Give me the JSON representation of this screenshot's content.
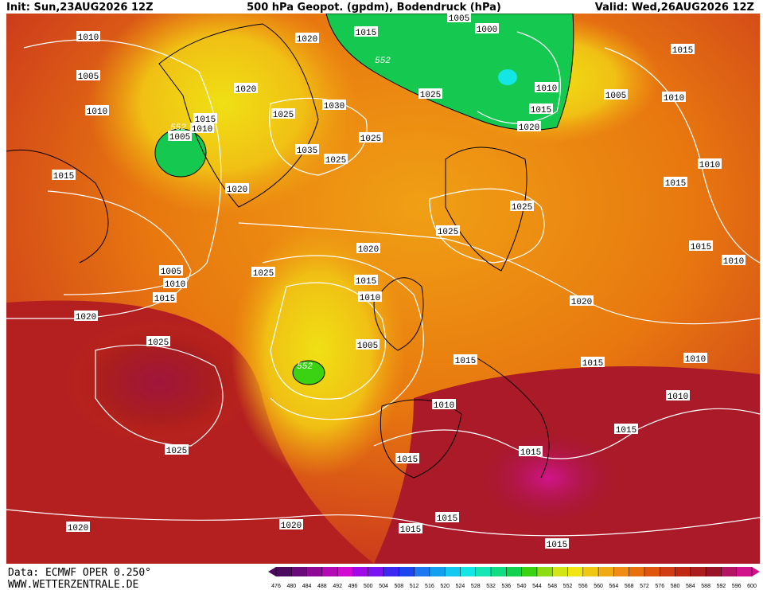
{
  "header": {
    "init": "Init: Sun,23AUG2026 12Z",
    "title": "500 hPa Geopot. (gpdm), Bodendruck (hPa)",
    "valid": "Valid: Wed,26AUG2026 12Z"
  },
  "footer": {
    "source": "Data: ECMWF OPER 0.250°",
    "site": "WWW.WETTERZENTRALE.DE"
  },
  "isobar_labels": [
    "1010",
    "1005",
    "1010",
    "1015",
    "1005",
    "1010",
    "1015",
    "552",
    "1020",
    "1015",
    "1005",
    "1000",
    "552",
    "1020",
    "1025",
    "1030",
    "1035",
    "1025",
    "1025",
    "1025",
    "1010",
    "1015",
    "1020",
    "1005",
    "1015",
    "1010",
    "1010",
    "1015",
    "1025",
    "1025",
    "1020",
    "1020",
    "1025",
    "1005",
    "1010",
    "1015",
    "1020",
    "1015",
    "1010",
    "1025",
    "1005",
    "552",
    "1015",
    "1015",
    "1010",
    "1020",
    "1015",
    "1010",
    "1010",
    "1010",
    "1015",
    "1025",
    "1015",
    "1015",
    "1020",
    "1020",
    "1015",
    "1015",
    "1015"
  ],
  "colorbar": {
    "labels": [
      476,
      480,
      484,
      488,
      492,
      496,
      500,
      504,
      508,
      512,
      516,
      520,
      524,
      528,
      532,
      536,
      540,
      544,
      548,
      552,
      556,
      560,
      564,
      568,
      572,
      576,
      580,
      584,
      588,
      592,
      596,
      600
    ],
    "colors": [
      "#4b0a5e",
      "#6a0a7a",
      "#8c0a96",
      "#b40ab4",
      "#d20ad2",
      "#a00ae6",
      "#7a14f0",
      "#3c28f0",
      "#1e46f0",
      "#1e78f0",
      "#14a0f0",
      "#14c8f0",
      "#14e6e6",
      "#14e6b4",
      "#14dc82",
      "#14d250",
      "#3cd214",
      "#8cdc14",
      "#d2e614",
      "#f0e614",
      "#f0c814",
      "#f0aa14",
      "#f08c14",
      "#e8700f",
      "#e0560f",
      "#d23c14",
      "#c02814",
      "#aa1e1e",
      "#9a1428",
      "#b41464",
      "#d2148c"
    ]
  }
}
